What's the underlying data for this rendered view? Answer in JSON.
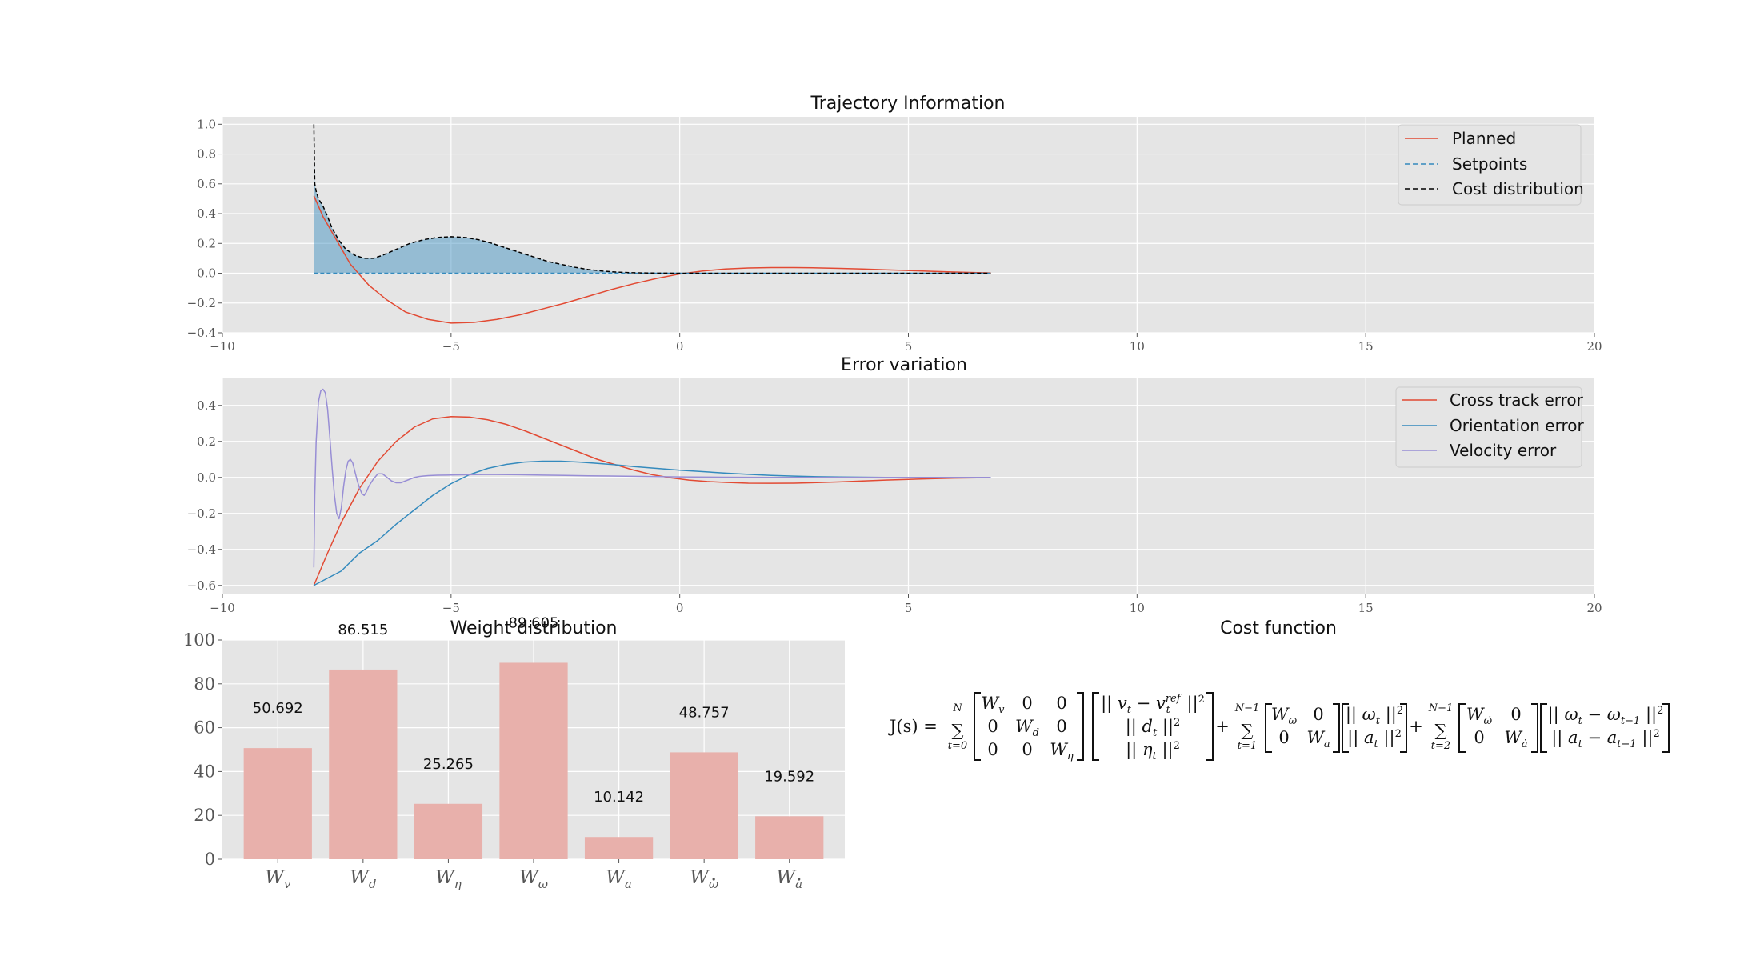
{
  "chart_data": [
    {
      "type": "line",
      "title": "Trajectory Information",
      "xlim": [
        -10,
        20
      ],
      "ylim": [
        -0.4,
        1.05
      ],
      "xticks": [
        -10,
        -5,
        0,
        5,
        10,
        15,
        20
      ],
      "yticks": [
        -0.4,
        -0.2,
        0.0,
        0.2,
        0.4,
        0.6,
        0.8,
        1.0
      ],
      "xtick_labels": [
        "−10",
        "−5",
        "0",
        "5",
        "10",
        "15",
        "20"
      ],
      "ytick_labels": [
        "−0.4",
        "−0.2",
        "0.0",
        "0.2",
        "0.4",
        "0.6",
        "0.8",
        "1.0"
      ],
      "grid": true,
      "legend_position": "top-right",
      "series": [
        {
          "name": "Planned",
          "style": "solid",
          "color": "#E24A33",
          "x": [
            -8.0,
            -7.8,
            -7.5,
            -7.2,
            -6.8,
            -6.4,
            -6.0,
            -5.5,
            -5.0,
            -4.5,
            -4.0,
            -3.5,
            -3.0,
            -2.5,
            -2.0,
            -1.5,
            -1.0,
            -0.5,
            0.0,
            0.5,
            1.0,
            1.5,
            2.0,
            2.5,
            3.0,
            3.5,
            4.0,
            4.5,
            5.0,
            5.5,
            6.0,
            6.5,
            6.8
          ],
          "y": [
            0.52,
            0.38,
            0.22,
            0.06,
            -0.08,
            -0.18,
            -0.26,
            -0.31,
            -0.335,
            -0.33,
            -0.31,
            -0.28,
            -0.24,
            -0.2,
            -0.155,
            -0.11,
            -0.07,
            -0.035,
            -0.005,
            0.015,
            0.028,
            0.035,
            0.038,
            0.038,
            0.036,
            0.032,
            0.028,
            0.023,
            0.018,
            0.013,
            0.008,
            0.004,
            0.002
          ]
        },
        {
          "name": "Setpoints",
          "style": "dashed",
          "color": "#348ABD",
          "x": [
            -8.0,
            6.8
          ],
          "y": [
            0.0,
            0.0
          ]
        },
        {
          "name": "Cost distribution",
          "style": "dashed",
          "color": "#000000",
          "fill": "#348ABD",
          "x": [
            -8.0,
            -7.98,
            -7.95,
            -7.9,
            -7.8,
            -7.7,
            -7.6,
            -7.45,
            -7.3,
            -7.1,
            -6.9,
            -6.7,
            -6.5,
            -6.2,
            -5.9,
            -5.6,
            -5.3,
            -5.0,
            -4.7,
            -4.4,
            -4.1,
            -3.8,
            -3.5,
            -3.2,
            -2.9,
            -2.6,
            -2.3,
            -2.0,
            -1.7,
            -1.4,
            -1.1,
            -0.8,
            -0.5,
            0.0,
            1.0,
            2.0,
            4.0,
            6.8
          ],
          "y": [
            1.0,
            0.6,
            0.55,
            0.5,
            0.45,
            0.38,
            0.3,
            0.22,
            0.16,
            0.12,
            0.1,
            0.1,
            0.12,
            0.16,
            0.2,
            0.225,
            0.24,
            0.245,
            0.24,
            0.225,
            0.2,
            0.17,
            0.14,
            0.11,
            0.08,
            0.06,
            0.04,
            0.025,
            0.015,
            0.008,
            0.004,
            0.002,
            0.001,
            0.0,
            0.0,
            0.0,
            0.0,
            0.0
          ]
        }
      ]
    },
    {
      "type": "line",
      "title": "Error variation",
      "xlim": [
        -10,
        20
      ],
      "ylim": [
        -0.65,
        0.55
      ],
      "xticks": [
        -10,
        -5,
        0,
        5,
        10,
        15,
        20
      ],
      "yticks": [
        -0.6,
        -0.4,
        -0.2,
        0.0,
        0.2,
        0.4
      ],
      "xtick_labels": [
        "−10",
        "−5",
        "0",
        "5",
        "10",
        "15",
        "20"
      ],
      "ytick_labels": [
        "−0.6",
        "−0.4",
        "−0.2",
        "0.0",
        "0.2",
        "0.4"
      ],
      "grid": true,
      "legend_position": "top-right",
      "series": [
        {
          "name": "Cross track error",
          "style": "solid",
          "color": "#E24A33",
          "x": [
            -8.0,
            -7.7,
            -7.4,
            -7.0,
            -6.6,
            -6.2,
            -5.8,
            -5.4,
            -5.0,
            -4.6,
            -4.2,
            -3.8,
            -3.4,
            -3.0,
            -2.6,
            -2.2,
            -1.8,
            -1.4,
            -1.0,
            -0.6,
            -0.2,
            0.2,
            0.6,
            1.0,
            1.5,
            2.0,
            2.5,
            3.0,
            3.5,
            4.0,
            4.5,
            5.0,
            5.5,
            6.0,
            6.5,
            6.8
          ],
          "y": [
            -0.6,
            -0.42,
            -0.25,
            -0.06,
            0.09,
            0.2,
            0.28,
            0.325,
            0.338,
            0.335,
            0.32,
            0.295,
            0.26,
            0.22,
            0.18,
            0.14,
            0.1,
            0.07,
            0.04,
            0.015,
            -0.002,
            -0.015,
            -0.023,
            -0.028,
            -0.032,
            -0.033,
            -0.032,
            -0.029,
            -0.025,
            -0.02,
            -0.015,
            -0.011,
            -0.007,
            -0.004,
            -0.002,
            -0.001
          ]
        },
        {
          "name": "Orientation error",
          "style": "solid",
          "color": "#348ABD",
          "x": [
            -8.0,
            -7.7,
            -7.4,
            -7.2,
            -7.0,
            -6.6,
            -6.2,
            -5.8,
            -5.4,
            -5.0,
            -4.6,
            -4.2,
            -3.8,
            -3.4,
            -3.0,
            -2.6,
            -2.2,
            -1.8,
            -1.4,
            -1.0,
            -0.5,
            0.0,
            0.5,
            1.0,
            1.5,
            2.0,
            2.5,
            3.0,
            3.5,
            4.0,
            4.5,
            5.0,
            5.5,
            6.0,
            6.5,
            6.8
          ],
          "y": [
            -0.6,
            -0.56,
            -0.52,
            -0.47,
            -0.42,
            -0.35,
            -0.26,
            -0.18,
            -0.1,
            -0.035,
            0.015,
            0.05,
            0.072,
            0.085,
            0.09,
            0.09,
            0.085,
            0.078,
            0.07,
            0.06,
            0.05,
            0.04,
            0.032,
            0.024,
            0.017,
            0.011,
            0.007,
            0.004,
            0.002,
            0.001,
            0.0,
            0.0,
            0.0,
            0.0,
            0.0,
            0.0
          ]
        },
        {
          "name": "Velocity error",
          "style": "solid",
          "color": "#988ED5",
          "x": [
            -8.0,
            -7.98,
            -7.95,
            -7.9,
            -7.85,
            -7.8,
            -7.75,
            -7.7,
            -7.65,
            -7.6,
            -7.55,
            -7.5,
            -7.45,
            -7.4,
            -7.35,
            -7.3,
            -7.25,
            -7.2,
            -7.15,
            -7.1,
            -7.05,
            -7.0,
            -6.95,
            -6.9,
            -6.85,
            -6.8,
            -6.7,
            -6.6,
            -6.5,
            -6.4,
            -6.3,
            -6.2,
            -6.1,
            -6.0,
            -5.9,
            -5.8,
            -5.7,
            -5.6,
            -5.5,
            -5.3,
            -5.1,
            -4.9,
            -4.6,
            -4.3,
            -4.0,
            -3.5,
            -3.0,
            -2.5,
            -2.0,
            -1.0,
            0.0,
            1.0,
            2.0,
            3.0,
            4.0,
            5.0,
            6.0,
            6.8
          ],
          "y": [
            -0.5,
            -0.1,
            0.2,
            0.42,
            0.48,
            0.49,
            0.47,
            0.38,
            0.22,
            0.05,
            -0.1,
            -0.2,
            -0.23,
            -0.17,
            -0.05,
            0.04,
            0.09,
            0.1,
            0.08,
            0.03,
            -0.02,
            -0.06,
            -0.09,
            -0.1,
            -0.08,
            -0.05,
            -0.01,
            0.02,
            0.02,
            0.0,
            -0.02,
            -0.03,
            -0.03,
            -0.02,
            -0.01,
            0.0,
            0.005,
            0.008,
            0.01,
            0.012,
            0.013,
            0.014,
            0.015,
            0.016,
            0.016,
            0.015,
            0.013,
            0.011,
            0.009,
            0.006,
            0.003,
            0.001,
            0.0,
            0.0,
            0.0,
            0.0,
            0.0,
            0.0
          ]
        }
      ]
    },
    {
      "type": "bar",
      "title": "Weight distribution",
      "categories": [
        "Wᵥ",
        "W_d",
        "W_η",
        "W_ω",
        "W_a",
        "W_ω̇",
        "W_ȧ"
      ],
      "category_labels": [
        {
          "base": "W",
          "sub": "v",
          "dot": false
        },
        {
          "base": "W",
          "sub": "d",
          "dot": false
        },
        {
          "base": "W",
          "sub": "η",
          "dot": false
        },
        {
          "base": "W",
          "sub": "ω",
          "dot": false
        },
        {
          "base": "W",
          "sub": "a",
          "dot": false
        },
        {
          "base": "W",
          "sub": "ω",
          "dot": true
        },
        {
          "base": "W",
          "sub": "a",
          "dot": true
        }
      ],
      "values": [
        50.692,
        86.515,
        25.265,
        89.605,
        10.142,
        48.757,
        19.592
      ],
      "value_labels": [
        "50.692",
        "86.515",
        "25.265",
        "89.605",
        "10.142",
        "48.757",
        "19.592"
      ],
      "ylim": [
        0,
        100
      ],
      "yticks": [
        0,
        20,
        40,
        60,
        80,
        100
      ],
      "ytick_labels": [
        "0",
        "20",
        "40",
        "60",
        "80",
        "100"
      ],
      "color": "#E8B0AB",
      "grid": true
    }
  ],
  "cost_function": {
    "title": "Cost function",
    "lhs": "J(s) =",
    "sum1": {
      "top": "N",
      "bottom": "t=0"
    },
    "sum2": {
      "top": "N−1",
      "bottom": "t=1"
    },
    "sum3": {
      "top": "N−1",
      "bottom": "t=2"
    },
    "plus": "+",
    "m1": [
      [
        "Wᵥ",
        "0",
        "0"
      ],
      [
        "0",
        "W_d",
        "0"
      ],
      [
        "0",
        "0",
        "W_η"
      ]
    ],
    "v1": [
      "|| v_t − v_t^ref ||²",
      "|| d_t ||²",
      "|| η_t ||²"
    ],
    "m2": [
      [
        "W_ω",
        "0"
      ],
      [
        "0",
        "W_a"
      ]
    ],
    "v2": [
      "|| ω_t ||²",
      "|| a_t ||²"
    ],
    "m3": [
      [
        "W_ω̇",
        "0"
      ],
      [
        "0",
        "W_ȧ"
      ]
    ],
    "v3": [
      "|| ω_t − ω_{t−1} ||²",
      "|| a_t − a_{t−1} ||²"
    ]
  }
}
